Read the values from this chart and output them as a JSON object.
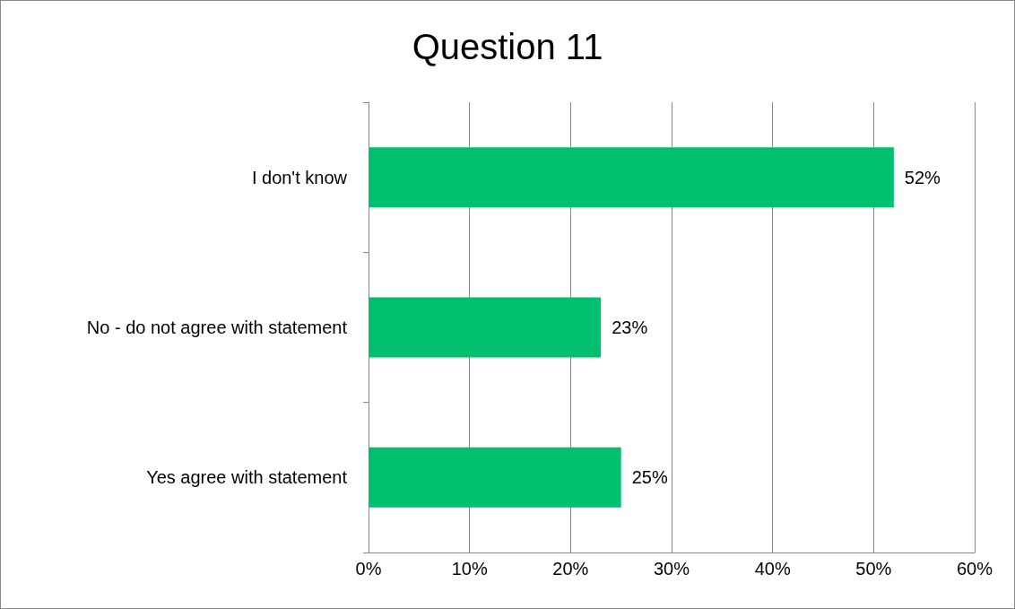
{
  "chart_data": {
    "type": "bar",
    "title": "Question 11",
    "orientation": "horizontal",
    "categories": [
      "I don't know",
      "No - do not agree with statement",
      "Yes agree with statement"
    ],
    "values": [
      52,
      23,
      25
    ],
    "value_labels": [
      "52%",
      "23%",
      "25%"
    ],
    "color": "#00c070",
    "xlim": [
      0,
      60
    ],
    "xticks": [
      {
        "value": 0,
        "label": "0%"
      },
      {
        "value": 10,
        "label": "10%"
      },
      {
        "value": 20,
        "label": "20%"
      },
      {
        "value": 30,
        "label": "30%"
      },
      {
        "value": 40,
        "label": "40%"
      },
      {
        "value": 50,
        "label": "50%"
      },
      {
        "value": 60,
        "label": "60%"
      }
    ],
    "grid": "x"
  }
}
